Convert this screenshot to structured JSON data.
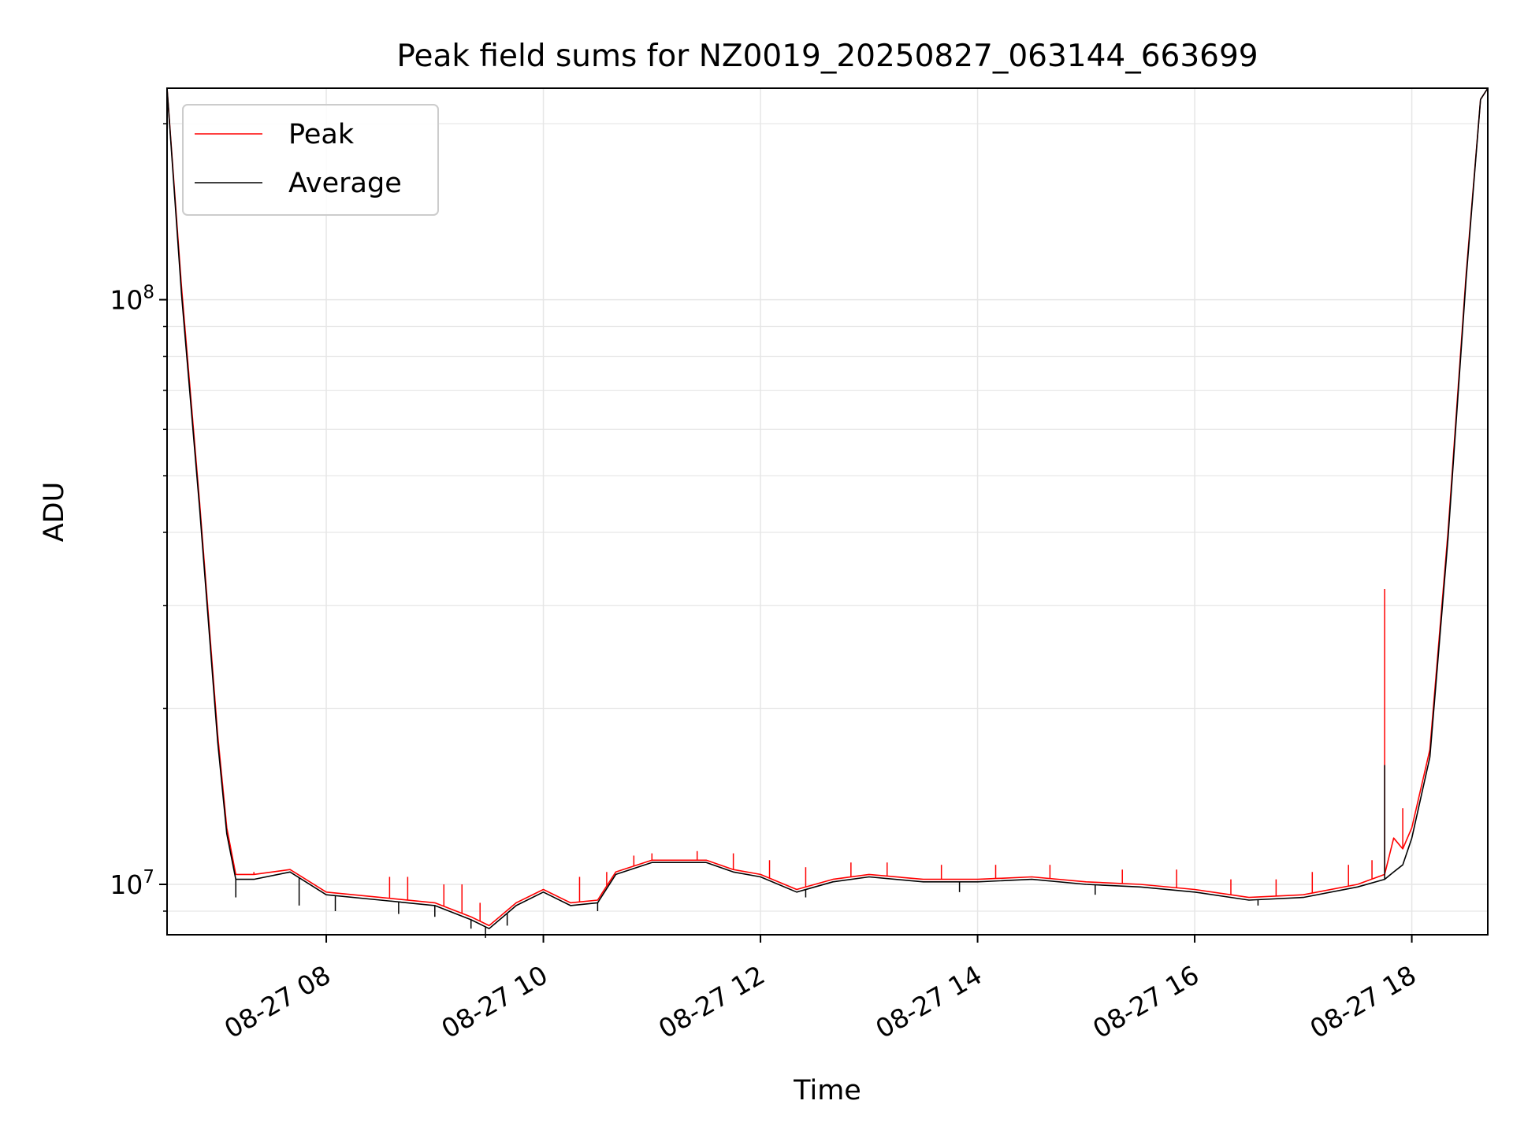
{
  "chart_data": {
    "type": "line",
    "title": "Peak field sums for NZ0019_20250827_063144_663699",
    "xlabel": "Time",
    "ylabel": "ADU",
    "y_scale": "log",
    "grid": true,
    "legend_position": "upper-left",
    "x_range": [
      "2025-08-27 06:32",
      "2025-08-27 18:42"
    ],
    "y_range": [
      8200000,
      230000000
    ],
    "x_ticks": [
      {
        "value": "2025-08-27 08:00",
        "label": "08-27 08"
      },
      {
        "value": "2025-08-27 10:00",
        "label": "08-27 10"
      },
      {
        "value": "2025-08-27 12:00",
        "label": "08-27 12"
      },
      {
        "value": "2025-08-27 14:00",
        "label": "08-27 14"
      },
      {
        "value": "2025-08-27 16:00",
        "label": "08-27 16"
      },
      {
        "value": "2025-08-27 18:00",
        "label": "08-27 18"
      }
    ],
    "y_ticks": [
      {
        "value": 10000000,
        "base": "10",
        "exp": "7"
      },
      {
        "value": 100000000,
        "base": "10",
        "exp": "8"
      }
    ],
    "series": [
      {
        "name": "Peak",
        "color": "#ff0000",
        "x": [
          "2025-08-27 06:32",
          "2025-08-27 06:40",
          "2025-08-27 06:50",
          "2025-08-27 07:00",
          "2025-08-27 07:05",
          "2025-08-27 07:10",
          "2025-08-27 07:20",
          "2025-08-27 07:40",
          "2025-08-27 08:00",
          "2025-08-27 08:30",
          "2025-08-27 09:00",
          "2025-08-27 09:20",
          "2025-08-27 09:30",
          "2025-08-27 09:45",
          "2025-08-27 10:00",
          "2025-08-27 10:15",
          "2025-08-27 10:30",
          "2025-08-27 10:40",
          "2025-08-27 11:00",
          "2025-08-27 11:30",
          "2025-08-27 11:45",
          "2025-08-27 12:00",
          "2025-08-27 12:20",
          "2025-08-27 12:40",
          "2025-08-27 13:00",
          "2025-08-27 13:30",
          "2025-08-27 14:00",
          "2025-08-27 14:30",
          "2025-08-27 15:00",
          "2025-08-27 15:30",
          "2025-08-27 16:00",
          "2025-08-27 16:30",
          "2025-08-27 17:00",
          "2025-08-27 17:30",
          "2025-08-27 17:45",
          "2025-08-27 17:50",
          "2025-08-27 17:55",
          "2025-08-27 18:00",
          "2025-08-27 18:10",
          "2025-08-27 18:20",
          "2025-08-27 18:30",
          "2025-08-27 18:38",
          "2025-08-27 18:42"
        ],
        "y": [
          230000000,
          105000000,
          45000000,
          18000000,
          12500000,
          10400000,
          10400000,
          10600000,
          9700000,
          9500000,
          9300000,
          8800000,
          8500000,
          9300000,
          9800000,
          9300000,
          9400000,
          10500000,
          11000000,
          11000000,
          10600000,
          10400000,
          9800000,
          10200000,
          10400000,
          10200000,
          10200000,
          10300000,
          10100000,
          10000000,
          9800000,
          9500000,
          9600000,
          10000000,
          10400000,
          12000000,
          11500000,
          12500000,
          17000000,
          40000000,
          110000000,
          220000000,
          230000000
        ],
        "spikes": [
          {
            "x": "2025-08-27 07:20",
            "y": 10500000
          },
          {
            "x": "2025-08-27 08:35",
            "y": 10300000
          },
          {
            "x": "2025-08-27 08:45",
            "y": 10300000
          },
          {
            "x": "2025-08-27 09:05",
            "y": 10000000
          },
          {
            "x": "2025-08-27 09:15",
            "y": 10000000
          },
          {
            "x": "2025-08-27 09:25",
            "y": 9300000
          },
          {
            "x": "2025-08-27 10:20",
            "y": 10300000
          },
          {
            "x": "2025-08-27 10:35",
            "y": 10500000
          },
          {
            "x": "2025-08-27 10:50",
            "y": 11200000
          },
          {
            "x": "2025-08-27 11:00",
            "y": 11300000
          },
          {
            "x": "2025-08-27 11:25",
            "y": 11400000
          },
          {
            "x": "2025-08-27 11:45",
            "y": 11300000
          },
          {
            "x": "2025-08-27 12:05",
            "y": 11000000
          },
          {
            "x": "2025-08-27 12:25",
            "y": 10700000
          },
          {
            "x": "2025-08-27 12:50",
            "y": 10900000
          },
          {
            "x": "2025-08-27 13:10",
            "y": 10900000
          },
          {
            "x": "2025-08-27 13:40",
            "y": 10800000
          },
          {
            "x": "2025-08-27 14:10",
            "y": 10800000
          },
          {
            "x": "2025-08-27 14:40",
            "y": 10800000
          },
          {
            "x": "2025-08-27 15:20",
            "y": 10600000
          },
          {
            "x": "2025-08-27 15:50",
            "y": 10600000
          },
          {
            "x": "2025-08-27 16:20",
            "y": 10200000
          },
          {
            "x": "2025-08-27 16:45",
            "y": 10200000
          },
          {
            "x": "2025-08-27 17:05",
            "y": 10500000
          },
          {
            "x": "2025-08-27 17:25",
            "y": 10800000
          },
          {
            "x": "2025-08-27 17:38",
            "y": 11000000
          },
          {
            "x": "2025-08-27 17:45",
            "y": 32000000
          },
          {
            "x": "2025-08-27 17:55",
            "y": 13500000
          }
        ]
      },
      {
        "name": "Average",
        "color": "#000000",
        "x": [
          "2025-08-27 06:32",
          "2025-08-27 06:40",
          "2025-08-27 06:50",
          "2025-08-27 07:00",
          "2025-08-27 07:05",
          "2025-08-27 07:10",
          "2025-08-27 07:20",
          "2025-08-27 07:40",
          "2025-08-27 08:00",
          "2025-08-27 08:30",
          "2025-08-27 09:00",
          "2025-08-27 09:20",
          "2025-08-27 09:30",
          "2025-08-27 09:45",
          "2025-08-27 10:00",
          "2025-08-27 10:15",
          "2025-08-27 10:30",
          "2025-08-27 10:40",
          "2025-08-27 11:00",
          "2025-08-27 11:30",
          "2025-08-27 11:45",
          "2025-08-27 12:00",
          "2025-08-27 12:20",
          "2025-08-27 12:40",
          "2025-08-27 13:00",
          "2025-08-27 13:30",
          "2025-08-27 14:00",
          "2025-08-27 14:30",
          "2025-08-27 15:00",
          "2025-08-27 15:30",
          "2025-08-27 16:00",
          "2025-08-27 16:30",
          "2025-08-27 17:00",
          "2025-08-27 17:30",
          "2025-08-27 17:45",
          "2025-08-27 17:50",
          "2025-08-27 17:55",
          "2025-08-27 18:00",
          "2025-08-27 18:10",
          "2025-08-27 18:20",
          "2025-08-27 18:30",
          "2025-08-27 18:38",
          "2025-08-27 18:42"
        ],
        "y": [
          230000000,
          102000000,
          44000000,
          17500000,
          12200000,
          10200000,
          10200000,
          10500000,
          9600000,
          9400000,
          9200000,
          8700000,
          8400000,
          9200000,
          9700000,
          9200000,
          9300000,
          10400000,
          10900000,
          10900000,
          10500000,
          10300000,
          9700000,
          10100000,
          10300000,
          10100000,
          10100000,
          10200000,
          10000000,
          9900000,
          9700000,
          9400000,
          9500000,
          9900000,
          10200000,
          10500000,
          10800000,
          12000000,
          16500000,
          39000000,
          108000000,
          220000000,
          230000000
        ],
        "dips": [
          {
            "x": "2025-08-27 07:10",
            "y": 9500000
          },
          {
            "x": "2025-08-27 07:45",
            "y": 9200000
          },
          {
            "x": "2025-08-27 08:05",
            "y": 9000000
          },
          {
            "x": "2025-08-27 08:40",
            "y": 8900000
          },
          {
            "x": "2025-08-27 09:00",
            "y": 8800000
          },
          {
            "x": "2025-08-27 09:20",
            "y": 8400000
          },
          {
            "x": "2025-08-27 09:28",
            "y": 8100000
          },
          {
            "x": "2025-08-27 09:40",
            "y": 8500000
          },
          {
            "x": "2025-08-27 10:30",
            "y": 9000000
          },
          {
            "x": "2025-08-27 12:25",
            "y": 9500000
          },
          {
            "x": "2025-08-27 13:50",
            "y": 9700000
          },
          {
            "x": "2025-08-27 15:05",
            "y": 9600000
          },
          {
            "x": "2025-08-27 16:35",
            "y": 9200000
          },
          {
            "x": "2025-08-27 17:45",
            "y": 16000000
          }
        ]
      }
    ]
  }
}
